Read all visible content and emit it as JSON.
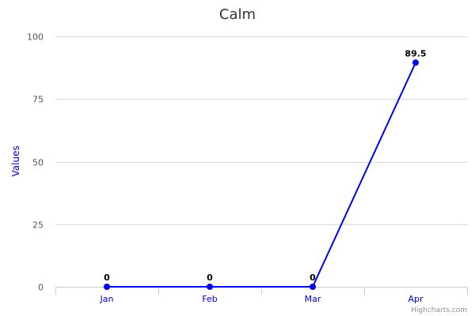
{
  "chart_data": {
    "type": "line",
    "title": "Calm",
    "xlabel": "",
    "ylabel": "Values",
    "categories": [
      "Jan",
      "Feb",
      "Mar",
      "Apr"
    ],
    "series": [
      {
        "name": "Values",
        "values": [
          0,
          0,
          0,
          89.5
        ],
        "data_labels": [
          "0",
          "0",
          "0",
          "89.5"
        ]
      }
    ],
    "ylim": [
      0,
      100
    ],
    "yticks": [
      0,
      25,
      50,
      75,
      100
    ],
    "ytick_labels": [
      "0",
      "25",
      "50",
      "75",
      "100"
    ],
    "grid": true,
    "legend": "none"
  },
  "credits": "Highcharts.com",
  "colors": {
    "series": "#0000ee",
    "axis_text": "#0000cc",
    "grid": "#d8d8d8",
    "axis_line": "#c0d0e0",
    "title": "#333333",
    "tick_text": "#555555",
    "credits": "#909090"
  }
}
